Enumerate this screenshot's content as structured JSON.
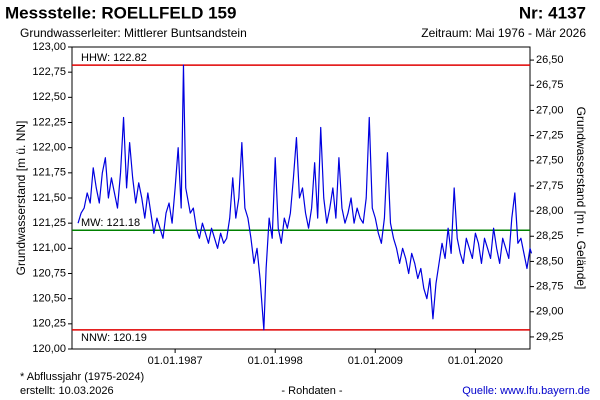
{
  "chart_data": {
    "type": "line",
    "title": "Messstelle: ROELLFELD 159",
    "number": "Nr: 4137",
    "aquifer": "Grundwasserleiter:  Mittlerer Buntsandstein",
    "period": "Zeitraum: Mai 1976 - Mär 2026",
    "ylabel": "Grundwasserstand [m ü. NN]",
    "y2label": "Grundwasserstand [m u. Gelände]",
    "footnote": "* Abflussjahr (1975-2024)",
    "created": "erstellt:  10.03.2026",
    "rawdata": "- Rohdaten -",
    "source": "Quelle: www.lfu.bayern.de",
    "color": "#0000e0",
    "xlim": [
      "1975-09",
      "2026-01"
    ],
    "xticks": [
      {
        "value": "1987-01",
        "label": "01.01.1987"
      },
      {
        "value": "1998-01",
        "label": "01.01.1998"
      },
      {
        "value": "2009-01",
        "label": "01.01.2009"
      },
      {
        "value": "2020-01",
        "label": "01.01.2020"
      }
    ],
    "ylim": [
      120,
      123
    ],
    "yticks": [
      {
        "value": 120,
        "label": "120,00"
      },
      {
        "value": 120.25,
        "label": "120,25"
      },
      {
        "value": 120.5,
        "label": "120,50"
      },
      {
        "value": 120.75,
        "label": "120,75"
      },
      {
        "value": 121,
        "label": "121,00"
      },
      {
        "value": 121.25,
        "label": "121,25"
      },
      {
        "value": 121.5,
        "label": "121,50"
      },
      {
        "value": 121.75,
        "label": "121,75"
      },
      {
        "value": 122,
        "label": "122,00"
      },
      {
        "value": 122.25,
        "label": "122,25"
      },
      {
        "value": 122.5,
        "label": "122,50"
      },
      {
        "value": 122.75,
        "label": "122,75"
      },
      {
        "value": 123,
        "label": "123,00"
      }
    ],
    "y2lim": [
      29.37,
      26.37
    ],
    "y2ticks": [
      {
        "value": 26.5,
        "label": "26,50"
      },
      {
        "value": 26.75,
        "label": "26,75"
      },
      {
        "value": 27,
        "label": "27,00"
      },
      {
        "value": 27.25,
        "label": "27,25"
      },
      {
        "value": 27.5,
        "label": "27,50"
      },
      {
        "value": 27.75,
        "label": "27,75"
      },
      {
        "value": 28,
        "label": "28,00"
      },
      {
        "value": 28.25,
        "label": "28,25"
      },
      {
        "value": 28.5,
        "label": "28,50"
      },
      {
        "value": 28.75,
        "label": "28,75"
      },
      {
        "value": 29,
        "label": "29,00"
      },
      {
        "value": 29.25,
        "label": "29,25"
      }
    ],
    "hlines": [
      {
        "label": "HHW: 122.82",
        "value": 122.82,
        "color": "#e00000"
      },
      {
        "label": "MW: 121.18",
        "value": 121.18,
        "color": "#008000"
      },
      {
        "label": "NNW: 120.19",
        "value": 120.19,
        "color": "#e00000"
      }
    ],
    "x": [
      "1976-05",
      "1976-09",
      "1977-01",
      "1977-05",
      "1977-09",
      "1978-01",
      "1978-05",
      "1978-09",
      "1979-01",
      "1979-05",
      "1979-09",
      "1980-01",
      "1980-05",
      "1980-09",
      "1981-01",
      "1981-05",
      "1981-09",
      "1982-01",
      "1982-05",
      "1982-09",
      "1983-01",
      "1983-05",
      "1983-09",
      "1984-01",
      "1984-05",
      "1984-09",
      "1985-01",
      "1985-05",
      "1985-09",
      "1986-01",
      "1986-05",
      "1986-09",
      "1987-01",
      "1987-05",
      "1987-09",
      "1987-12",
      "1988-03",
      "1988-09",
      "1989-01",
      "1989-05",
      "1989-09",
      "1990-01",
      "1990-05",
      "1990-09",
      "1991-01",
      "1991-05",
      "1991-09",
      "1992-01",
      "1992-05",
      "1992-09",
      "1993-01",
      "1993-05",
      "1993-09",
      "1994-01",
      "1994-05",
      "1994-09",
      "1995-01",
      "1995-05",
      "1995-09",
      "1996-01",
      "1996-05",
      "1996-10",
      "1997-01",
      "1997-05",
      "1997-09",
      "1998-01",
      "1998-05",
      "1998-09",
      "1999-01",
      "1999-05",
      "1999-09",
      "2000-01",
      "2000-05",
      "2000-09",
      "2001-01",
      "2001-05",
      "2001-09",
      "2002-01",
      "2002-05",
      "2002-09",
      "2003-01",
      "2003-05",
      "2003-09",
      "2004-01",
      "2004-05",
      "2004-09",
      "2005-01",
      "2005-05",
      "2005-09",
      "2006-01",
      "2006-05",
      "2006-09",
      "2007-01",
      "2007-05",
      "2007-09",
      "2008-01",
      "2008-05",
      "2008-09",
      "2009-01",
      "2009-05",
      "2009-09",
      "2010-01",
      "2010-05",
      "2010-09",
      "2011-01",
      "2011-05",
      "2011-09",
      "2012-01",
      "2012-05",
      "2012-09",
      "2013-01",
      "2013-05",
      "2013-09",
      "2014-01",
      "2014-05",
      "2014-09",
      "2015-01",
      "2015-05",
      "2015-09",
      "2016-01",
      "2016-05",
      "2016-09",
      "2017-01",
      "2017-05",
      "2017-09",
      "2018-01",
      "2018-05",
      "2018-09",
      "2019-01",
      "2019-05",
      "2019-09",
      "2020-01",
      "2020-05",
      "2020-09",
      "2021-01",
      "2021-05",
      "2021-09",
      "2022-01",
      "2022-05",
      "2022-09",
      "2023-01",
      "2023-05",
      "2023-09",
      "2024-01",
      "2024-05",
      "2024-09",
      "2025-01",
      "2025-05",
      "2025-09",
      "2026-01",
      "2026-03"
    ],
    "values": [
      121.25,
      121.35,
      121.4,
      121.55,
      121.45,
      121.8,
      121.6,
      121.45,
      121.75,
      121.9,
      121.5,
      121.7,
      121.55,
      121.4,
      121.75,
      122.3,
      121.6,
      122.05,
      121.7,
      121.45,
      121.65,
      121.5,
      121.3,
      121.55,
      121.35,
      121.15,
      121.3,
      121.2,
      121.1,
      121.35,
      121.45,
      121.25,
      121.6,
      122.0,
      121.4,
      122.82,
      121.6,
      121.35,
      121.4,
      121.2,
      121.1,
      121.25,
      121.15,
      121.05,
      121.2,
      121.1,
      121.0,
      121.15,
      121.05,
      121.1,
      121.3,
      121.7,
      121.3,
      121.5,
      122.05,
      121.4,
      121.3,
      121.1,
      120.85,
      121.0,
      120.7,
      120.19,
      120.8,
      121.3,
      121.1,
      121.9,
      121.2,
      121.05,
      121.3,
      121.2,
      121.35,
      121.7,
      122.1,
      121.5,
      121.6,
      121.35,
      121.2,
      121.4,
      121.85,
      121.3,
      122.2,
      121.5,
      121.25,
      121.4,
      121.6,
      121.3,
      121.9,
      121.4,
      121.25,
      121.35,
      121.5,
      121.25,
      121.4,
      121.3,
      121.25,
      121.5,
      122.3,
      121.4,
      121.3,
      121.15,
      121.05,
      121.3,
      121.95,
      121.25,
      121.1,
      121.0,
      120.85,
      121.0,
      120.9,
      120.75,
      120.95,
      120.85,
      120.7,
      120.8,
      120.6,
      120.5,
      120.7,
      120.3,
      120.65,
      120.85,
      121.05,
      120.9,
      121.2,
      120.95,
      121.6,
      121.1,
      120.95,
      120.85,
      121.1,
      121.0,
      120.9,
      121.15,
      121.05,
      120.85,
      121.1,
      121.0,
      120.9,
      121.2,
      121.0,
      120.85,
      121.1,
      121.0,
      120.9,
      121.3,
      121.55,
      121.05,
      121.1,
      120.95,
      120.8,
      121.0,
      120.95
    ]
  }
}
